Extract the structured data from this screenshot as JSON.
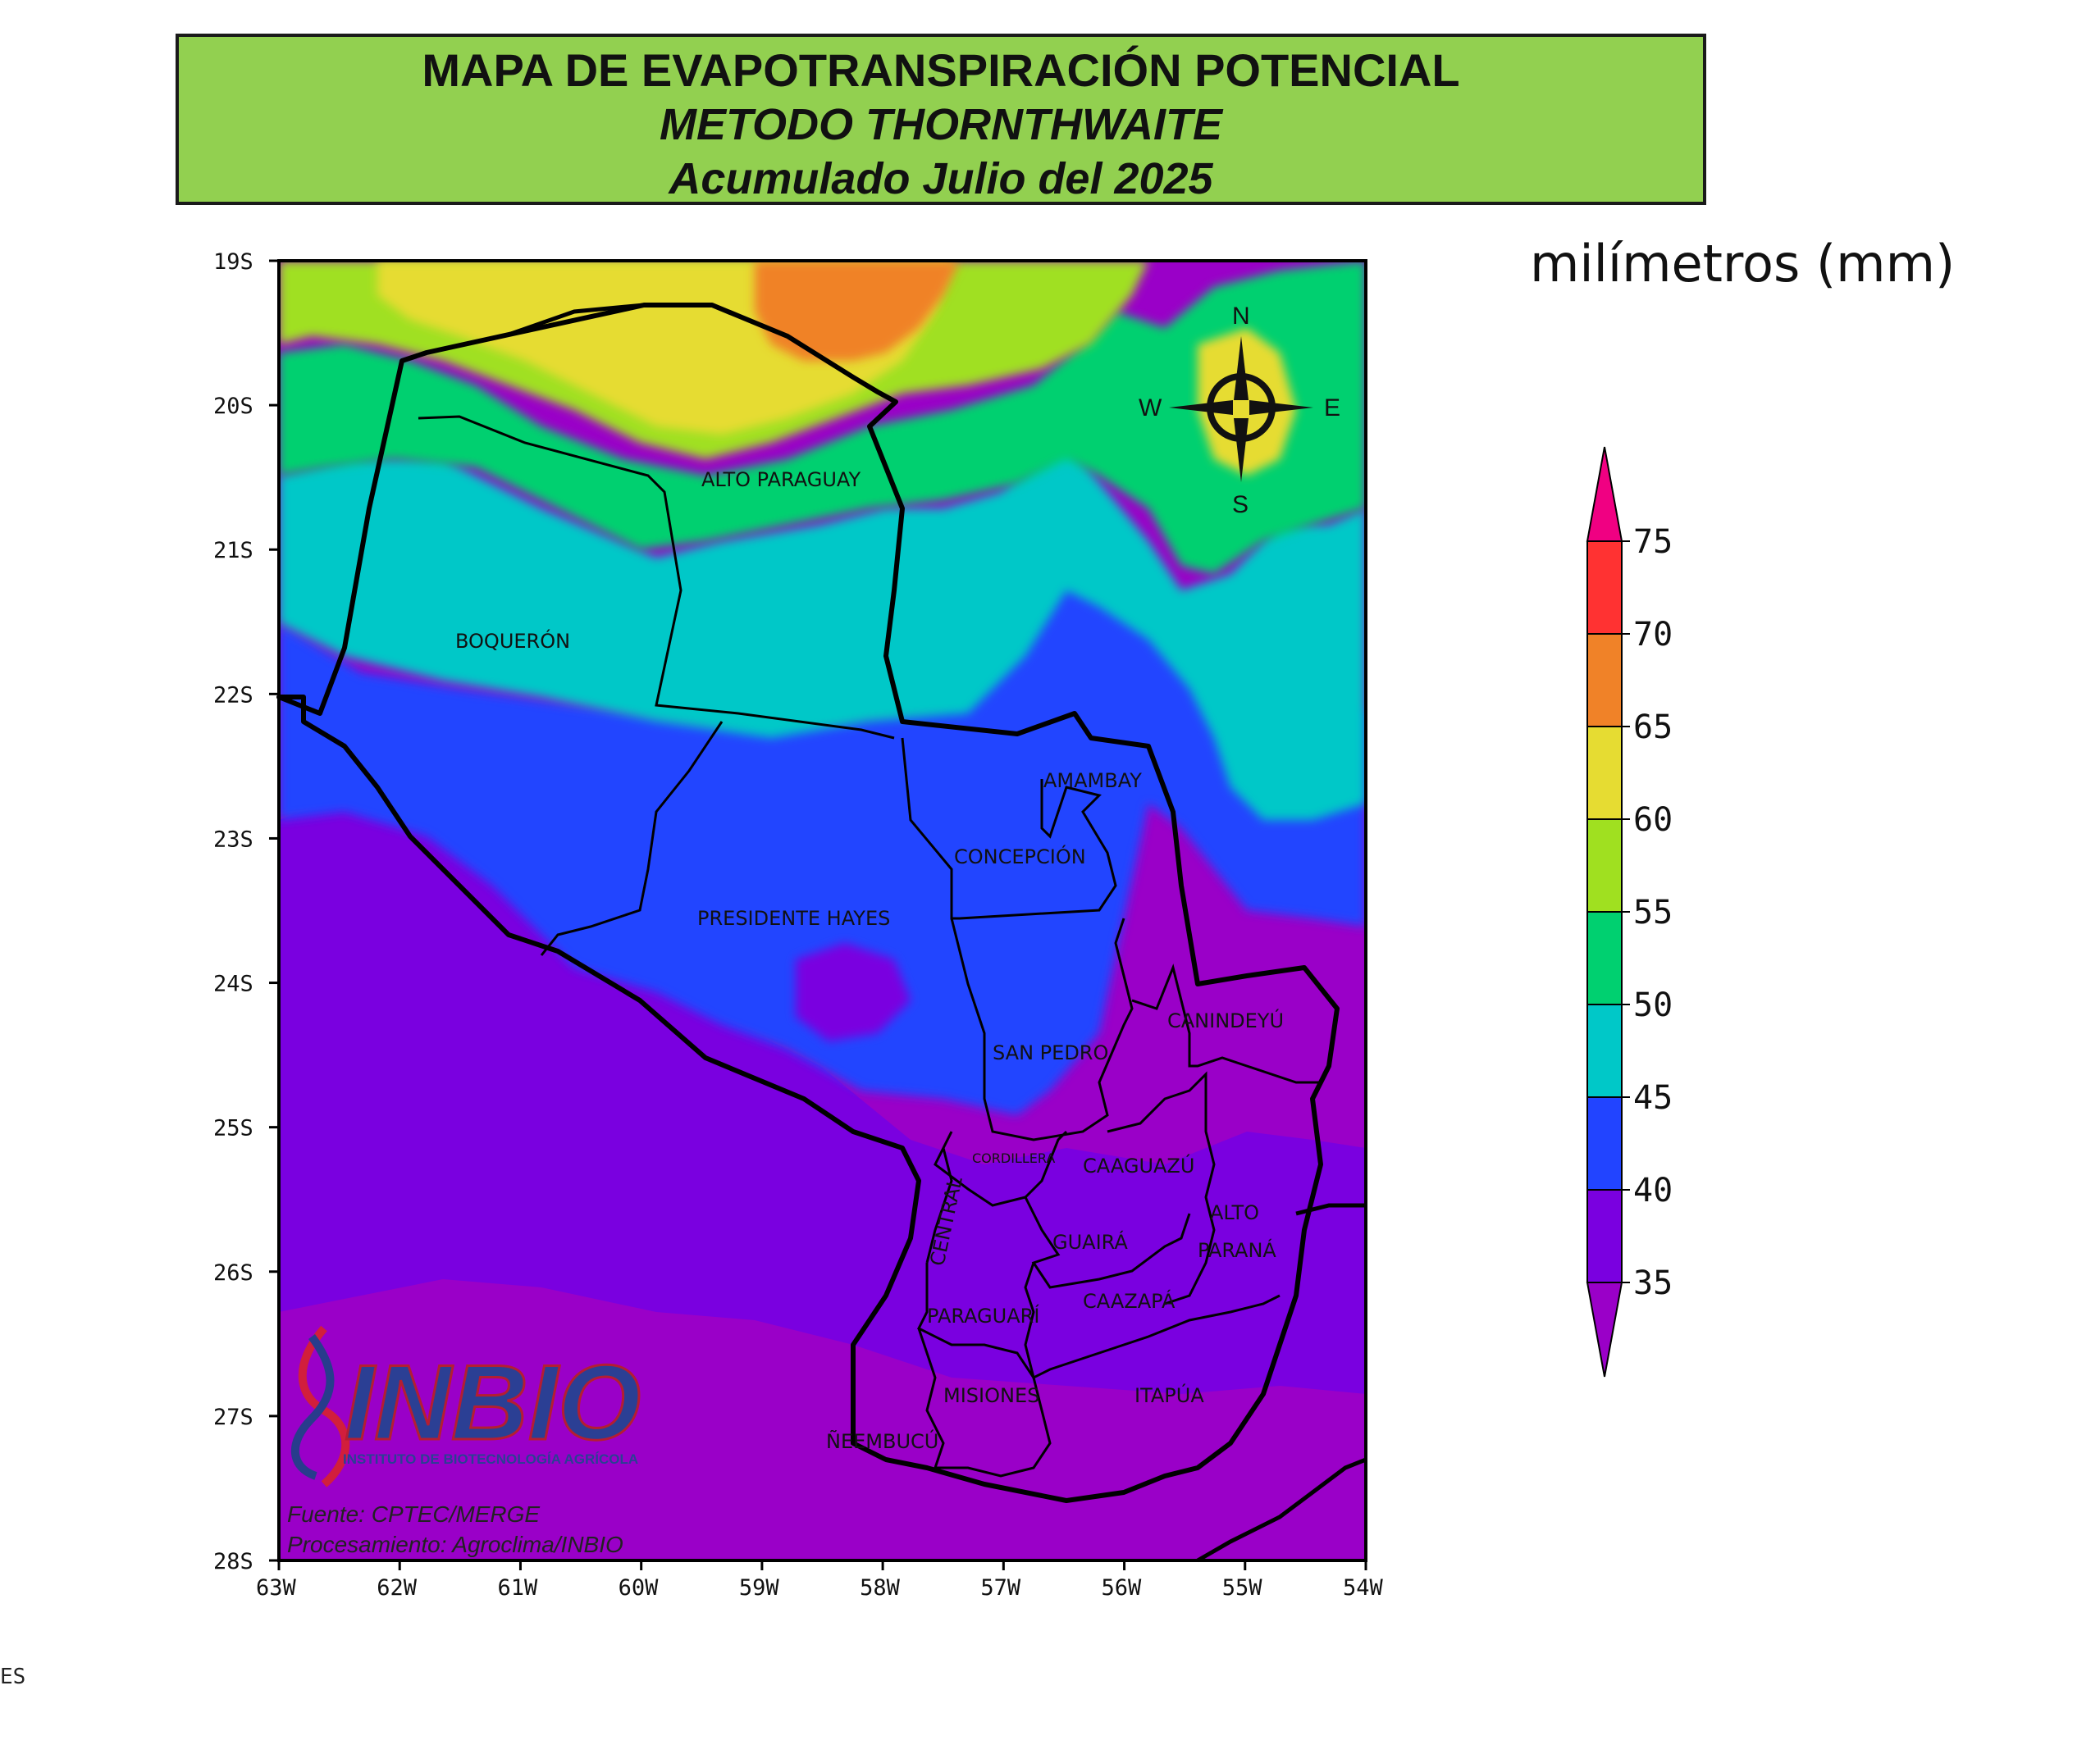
{
  "title": {
    "line1": "MAPA DE EVAPOTRANSPIRACIÓN POTENCIAL",
    "line2": "METODO THORNTHWAITE",
    "line3": "Acumulado Julio del 2025"
  },
  "units": "milímetros (mm)",
  "axes": {
    "lat_ticks": [
      "19S",
      "20S",
      "21S",
      "22S",
      "23S",
      "24S",
      "25S",
      "26S",
      "27S",
      "28S"
    ],
    "lon_ticks": [
      "63W",
      "62W",
      "61W",
      "60W",
      "59W",
      "58W",
      "57W",
      "56W",
      "55W",
      "54W"
    ],
    "lat_range": [
      -28,
      -19
    ],
    "lon_range": [
      -63,
      -54
    ]
  },
  "colorbar": {
    "labels": [
      "75",
      "70",
      "65",
      "60",
      "55",
      "50",
      "45",
      "40",
      "35"
    ],
    "classes": [
      {
        "range": "<35",
        "color": "#9a00c8"
      },
      {
        "range": "35-40",
        "color": "#7a00e0"
      },
      {
        "range": "40-45",
        "color": "#2244ff"
      },
      {
        "range": "45-50",
        "color": "#00c8c8"
      },
      {
        "range": "50-55",
        "color": "#00d070"
      },
      {
        "range": "55-60",
        "color": "#a0e020"
      },
      {
        "range": "60-65",
        "color": "#e6dc32"
      },
      {
        "range": "65-70",
        "color": "#f08228"
      },
      {
        "range": "70-75",
        "color": "#ff3232"
      },
      {
        "range": ">75",
        "color": "#f00082"
      }
    ]
  },
  "compass": {
    "n": "N",
    "s": "S",
    "e": "E",
    "w": "W"
  },
  "departments": {
    "alto_paraguay": "ALTO PARAGUAY",
    "boqueron": "BOQUERÓN",
    "amambay": "AMAMBAY",
    "concepcion": "CONCEPCIÓN",
    "presidente_hayes": "PRESIDENTE HAYES",
    "canindeyu": "CANINDEYÚ",
    "san_pedro": "SAN PEDRO",
    "cordillera": "CORDILLERA",
    "caaguazu": "CAAGUAZÚ",
    "central": "CENTRAL",
    "alto_parana_1": "ALTO",
    "alto_parana_2": "PARANÁ",
    "guaira": "GUAIRÁ",
    "caazapa": "CAAZAPÁ",
    "paraguari": "PARAGUARÍ",
    "misiones": "MISIONES",
    "itapua": "ITAPÚA",
    "neembucu": "ÑEEMBUCÚ"
  },
  "logo": {
    "name": "INBIO",
    "subtitle": "INSTITUTO DE BIOTECNOLOGÍA AGRÍCOLA"
  },
  "source": {
    "fuente": "Fuente: CPTEC/MERGE",
    "procesamiento": "Procesamiento: Agroclima/INBIO"
  },
  "stray_text": "ES"
}
